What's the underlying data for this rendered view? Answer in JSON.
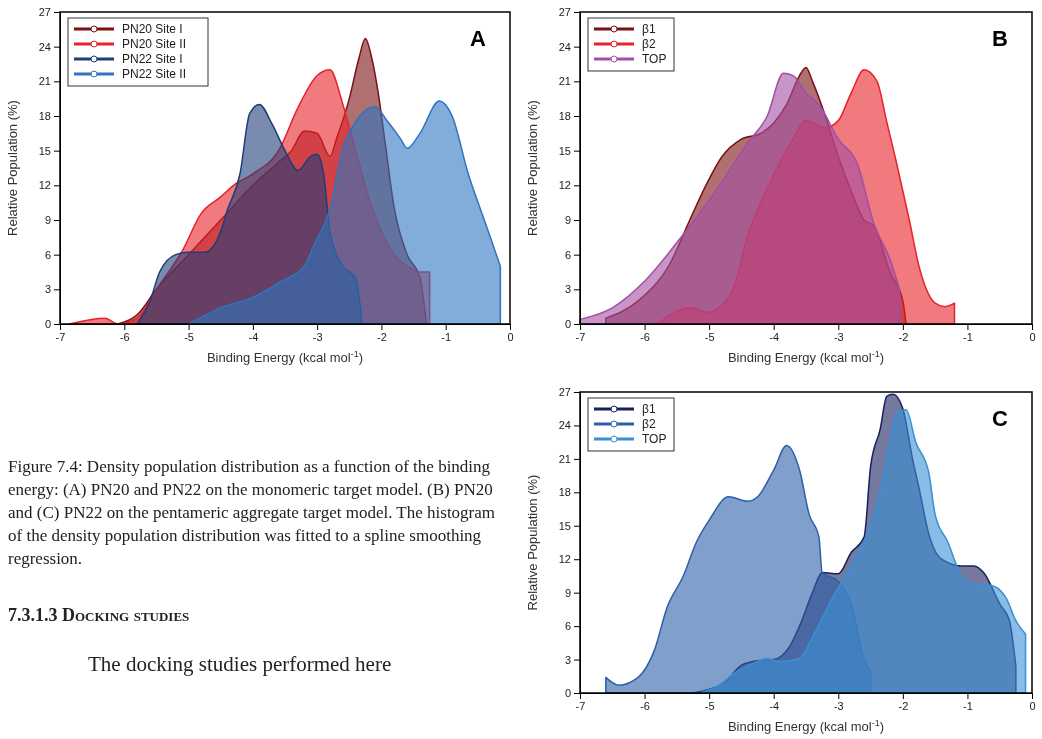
{
  "chart_data": [
    {
      "type": "area",
      "xlabel": "Binding Energy (kcal mol$^{-1}$)",
      "ylabel": "Relative Population (%)",
      "xlim": [
        -7,
        0
      ],
      "ylim": [
        0,
        27
      ],
      "xticks": [
        -7,
        -6,
        -5,
        -4,
        -3,
        -2,
        -1,
        0
      ],
      "yticks": [
        0,
        3,
        6,
        9,
        12,
        15,
        18,
        21,
        24,
        27
      ],
      "legend": "top left",
      "annotations": [
        "A",
        "Figure 7.4: Density population distribution as a function of the binding energy: (A) PN20 and PN22 on the monomeric target model. (B) PN20 and (C) PN22 on the pentameric aggregate target model. The histogram of the density population distribution was fitted to a spline smoothing regression.",
        "7.3.1.3 Docking studies",
        "The docking studies performed here"
      ],
      "series": [
        {
          "name": "PN20 Site I",
          "color": "#7b1113",
          "x": [
            -6.1,
            -5.8,
            -5.5,
            -5.0,
            -4.5,
            -4.0,
            -3.6,
            -3.4,
            -3.2,
            -3.0,
            -2.8,
            -2.7,
            -2.5,
            -2.35,
            -2.25,
            -2.15,
            -2.05,
            -1.95,
            -1.8,
            -1.6,
            -1.4,
            -1.3
          ],
          "values": [
            0,
            0.8,
            3,
            6,
            9,
            12,
            14,
            15,
            16.7,
            16.5,
            14.5,
            16,
            19.5,
            23,
            24.7,
            23,
            20,
            16,
            10,
            6,
            4,
            0
          ]
        },
        {
          "name": "PN20 Site II",
          "color": "#e8222a",
          "x": [
            -6.85,
            -6.3,
            -6.1,
            -5.8,
            -5.5,
            -5.1,
            -4.8,
            -4.5,
            -4.3,
            -4.0,
            -3.6,
            -3.3,
            -3.0,
            -2.8,
            -2.6,
            -2.4,
            -2.2,
            -2.0,
            -1.8,
            -1.6,
            -1.4,
            -1.25
          ],
          "values": [
            0,
            0.5,
            0,
            0.5,
            3,
            6.3,
            9.6,
            11,
            12,
            13,
            15,
            18.7,
            21.5,
            22,
            19,
            15,
            11,
            8,
            6,
            5,
            4.5,
            4.5
          ]
        },
        {
          "name": "PN22 Site I",
          "color": "#1f3d7a",
          "x": [
            -5.8,
            -5.6,
            -5.45,
            -5.2,
            -5.0,
            -4.75,
            -4.5,
            -4.4,
            -4.2,
            -4.05,
            -3.9,
            -3.7,
            -3.5,
            -3.3,
            -3.1,
            -3.0,
            -2.9,
            -2.8,
            -2.6,
            -2.4,
            -2.3
          ],
          "values": [
            0,
            2,
            4.5,
            6,
            6.2,
            6.2,
            8,
            9.8,
            13,
            18.2,
            19,
            17.3,
            15,
            13.3,
            14.5,
            14.7,
            13,
            8,
            5,
            4,
            0
          ]
        },
        {
          "name": "PN22 Site II",
          "color": "#2e75c0",
          "x": [
            -5.0,
            -4.5,
            -4.0,
            -3.55,
            -3.2,
            -3.05,
            -2.8,
            -2.6,
            -2.4,
            -2.1,
            -1.9,
            -1.7,
            -1.6,
            -1.4,
            -1.1,
            -0.9,
            -0.65,
            -0.4,
            -0.15
          ],
          "values": [
            0,
            1.4,
            2.3,
            3.7,
            5,
            6.8,
            10,
            15.2,
            17.5,
            18.8,
            17.5,
            16,
            15.2,
            16.5,
            19.3,
            18,
            13,
            9,
            5
          ]
        }
      ]
    },
    {
      "type": "area",
      "xlabel": "Binding Energy (kcal mol$^{-1}$)",
      "ylabel": "Relative Population (%)",
      "xlim": [
        -7,
        0
      ],
      "ylim": [
        0,
        27
      ],
      "xticks": [
        -7,
        -6,
        -5,
        -4,
        -3,
        -2,
        -1,
        0
      ],
      "yticks": [
        0,
        3,
        6,
        9,
        12,
        15,
        18,
        21,
        24,
        27
      ],
      "legend": "top left",
      "annotations": [
        "B"
      ],
      "series": [
        {
          "name": "β1",
          "color": "#7b1113",
          "x": [
            -6.6,
            -6.1,
            -5.6,
            -5.3,
            -5.05,
            -4.8,
            -4.5,
            -4.2,
            -4.0,
            -3.8,
            -3.6,
            -3.5,
            -3.4,
            -3.2,
            -3.0,
            -2.8,
            -2.6,
            -2.45,
            -2.2,
            -2.0,
            -1.95
          ],
          "values": [
            0.5,
            2,
            5.3,
            9,
            12,
            14.5,
            16,
            16.5,
            17.4,
            19,
            21.5,
            22.2,
            21,
            18,
            14.5,
            11.5,
            9,
            8.5,
            4.5,
            2,
            0
          ]
        },
        {
          "name": "β2",
          "color": "#e8222a",
          "x": [
            -5.8,
            -5.3,
            -5.0,
            -4.85,
            -4.6,
            -4.4,
            -4.2,
            -3.95,
            -3.7,
            -3.5,
            -3.2,
            -3.0,
            -2.8,
            -2.6,
            -2.4,
            -2.25,
            -2.1,
            -1.9,
            -1.75,
            -1.65,
            -1.5,
            -1.35,
            -1.2
          ],
          "values": [
            0,
            1.4,
            1,
            1.4,
            3.5,
            7.7,
            10.5,
            13.5,
            16,
            17.6,
            17,
            17.6,
            20,
            22,
            21,
            17.5,
            14,
            9,
            5,
            3.2,
            1.8,
            1.5,
            1.8
          ]
        },
        {
          "name": "TOP",
          "color": "#a34ea3",
          "x": [
            -7.0,
            -6.5,
            -6.0,
            -5.45,
            -4.9,
            -4.4,
            -4.1,
            -3.85,
            -3.7,
            -3.5,
            -3.3,
            -3.0,
            -2.7,
            -2.45,
            -2.2,
            -2.05
          ],
          "values": [
            0.4,
            1.4,
            3.7,
            7.4,
            11.5,
            15.7,
            18,
            21.7,
            21.5,
            20,
            19,
            16,
            13.8,
            8.7,
            5.6,
            3
          ]
        }
      ]
    },
    {
      "type": "area",
      "xlabel": "Binding Energy (kcal mol$^{-1}$)",
      "ylabel": "Relative Population (%)",
      "xlim": [
        -7,
        0
      ],
      "ylim": [
        0,
        27
      ],
      "xticks": [
        -7,
        -6,
        -5,
        -4,
        -3,
        -2,
        -1,
        0
      ],
      "yticks": [
        0,
        3,
        6,
        9,
        12,
        15,
        18,
        21,
        24,
        27
      ],
      "legend": "top left",
      "annotations": [
        "C"
      ],
      "series": [
        {
          "name": "β1",
          "color": "#1a1f5e",
          "x": [
            -5.25,
            -4.75,
            -4.5,
            -4.25,
            -4.0,
            -3.75,
            -3.6,
            -3.4,
            -3.25,
            -3.0,
            -2.8,
            -2.6,
            -2.5,
            -2.35,
            -2.25,
            -2.15,
            -2.0,
            -1.85,
            -1.75,
            -1.6,
            -1.4,
            -1.1,
            -0.9,
            -0.75,
            -0.5,
            -0.35,
            -0.25
          ],
          "values": [
            0,
            1,
            2.5,
            2.9,
            3,
            4.2,
            6,
            9,
            10.8,
            10.7,
            12.6,
            14,
            20.3,
            23.7,
            26.6,
            26.8,
            25.5,
            21,
            18.4,
            14.3,
            12,
            11.4,
            11.4,
            10.8,
            8,
            6.5,
            2.4
          ]
        },
        {
          "name": "β2",
          "color": "#2d5fa8",
          "x": [
            -6.6,
            -6.4,
            -6.1,
            -5.85,
            -5.65,
            -5.4,
            -5.2,
            -5.0,
            -4.7,
            -4.4,
            -4.25,
            -4.0,
            -3.8,
            -3.6,
            -3.45,
            -3.3,
            -3.25,
            -3.0,
            -2.8,
            -2.6,
            -2.5
          ],
          "values": [
            1.4,
            0.7,
            1.4,
            3.8,
            7.7,
            10.5,
            13.5,
            15.5,
            17.6,
            17.2,
            17.6,
            20,
            22.2,
            20,
            16,
            14,
            10.8,
            10,
            8,
            3,
            2
          ]
        },
        {
          "name": "TOP",
          "color": "#3a8fd6",
          "x": [
            -5.15,
            -4.9,
            -4.6,
            -4.3,
            -4.1,
            -3.9,
            -3.6,
            -3.4,
            -3.1,
            -2.8,
            -2.6,
            -2.4,
            -2.2,
            -2.1,
            -1.95,
            -1.8,
            -1.6,
            -1.5,
            -1.3,
            -1.1,
            -0.9,
            -0.6,
            -0.4,
            -0.25,
            -0.1
          ],
          "values": [
            0,
            0.5,
            1.8,
            2.7,
            3.1,
            2.8,
            3.1,
            5,
            8.4,
            11.5,
            13.6,
            17,
            22.5,
            25.1,
            25.4,
            22.5,
            19.8,
            16,
            13.5,
            10.6,
            9.8,
            9.6,
            8.5,
            6.5,
            5.3
          ]
        }
      ]
    }
  ]
}
